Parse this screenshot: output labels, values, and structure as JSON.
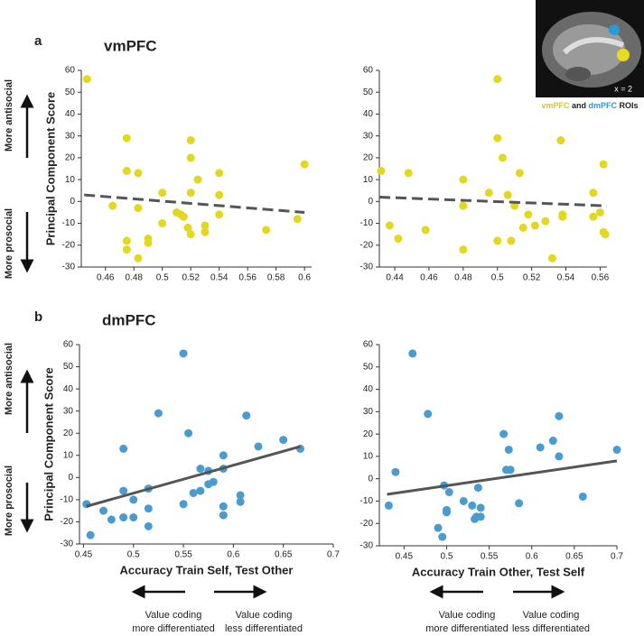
{
  "chart_data": [
    {
      "type": "scatter",
      "title": "vmPFC",
      "ylabel": "Principal Component Score",
      "color": "#e3d81f",
      "trend_style": "dashed",
      "xlim": [
        0.443,
        0.605
      ],
      "ylim": [
        -30,
        60
      ],
      "xticks": [
        0.46,
        0.48,
        0.5,
        0.52,
        0.54,
        0.56,
        0.58,
        0.6
      ],
      "yticks": [
        -30,
        -20,
        -10,
        0,
        10,
        20,
        30,
        40,
        50,
        60
      ],
      "x": [
        0.447,
        0.465,
        0.475,
        0.475,
        0.475,
        0.475,
        0.483,
        0.483,
        0.483,
        0.49,
        0.49,
        0.5,
        0.5,
        0.51,
        0.513,
        0.515,
        0.518,
        0.52,
        0.52,
        0.52,
        0.52,
        0.525,
        0.53,
        0.53,
        0.54,
        0.54,
        0.54,
        0.573,
        0.595,
        0.6
      ],
      "y": [
        56,
        -2,
        29,
        14,
        -18,
        -22,
        13,
        -3,
        -26,
        -17,
        -19,
        4,
        -10,
        -5,
        -6,
        -7,
        -12,
        28,
        20,
        4,
        -15,
        10,
        -11,
        -14,
        13,
        3,
        -6,
        -13,
        -8,
        17
      ],
      "trend": {
        "x": [
          0.445,
          0.6
        ],
        "y": [
          3,
          -5
        ]
      }
    },
    {
      "type": "scatter",
      "color": "#e3d81f",
      "trend_style": "dashed",
      "xlim": [
        0.431,
        0.564
      ],
      "ylim": [
        -30,
        60
      ],
      "xticks": [
        0.44,
        0.46,
        0.48,
        0.5,
        0.52,
        0.54,
        0.56
      ],
      "yticks": [
        -30,
        -20,
        -10,
        0,
        10,
        20,
        30,
        40,
        50,
        60
      ],
      "x": [
        0.432,
        0.437,
        0.442,
        0.448,
        0.458,
        0.48,
        0.48,
        0.48,
        0.495,
        0.5,
        0.5,
        0.5,
        0.503,
        0.506,
        0.508,
        0.51,
        0.513,
        0.515,
        0.518,
        0.522,
        0.528,
        0.532,
        0.537,
        0.538,
        0.538,
        0.556,
        0.556,
        0.56,
        0.562,
        0.562,
        0.563
      ],
      "y": [
        14,
        -11,
        -17,
        13,
        -13,
        10,
        -2,
        -22,
        4,
        56,
        29,
        -18,
        20,
        3,
        -18,
        -2,
        13,
        -12,
        -6,
        -11,
        -9,
        -26,
        28,
        -6,
        -7,
        4,
        -7,
        -5,
        17,
        -14,
        -15
      ],
      "trend": {
        "x": [
          0.431,
          0.564
        ],
        "y": [
          2,
          -2
        ]
      }
    },
    {
      "type": "scatter",
      "title": "dmPFC",
      "ylabel": "Principal Component Score",
      "xlabel": "Accuracy Train Self, Test Other",
      "color": "#4a9bd0",
      "trend_style": "solid",
      "xlim": [
        0.446,
        0.7
      ],
      "ylim": [
        -30,
        60
      ],
      "xticks": [
        0.45,
        0.5,
        0.55,
        0.6,
        0.65,
        0.7
      ],
      "yticks": [
        -30,
        -20,
        -10,
        0,
        10,
        20,
        30,
        40,
        50,
        60
      ],
      "x": [
        0.453,
        0.457,
        0.47,
        0.478,
        0.49,
        0.49,
        0.49,
        0.5,
        0.5,
        0.515,
        0.515,
        0.515,
        0.525,
        0.55,
        0.555,
        0.55,
        0.56,
        0.567,
        0.567,
        0.575,
        0.575,
        0.58,
        0.59,
        0.59,
        0.59,
        0.59,
        0.607,
        0.607,
        0.613,
        0.625,
        0.65,
        0.667
      ],
      "y": [
        -12,
        -26,
        -15,
        -19,
        13,
        -6,
        -18,
        -10,
        -18,
        -5,
        -14,
        -22,
        29,
        56,
        20,
        -12,
        -7,
        4,
        -6,
        3,
        -3,
        -2,
        10,
        4,
        -13,
        -17,
        -8,
        -11,
        28,
        14,
        17,
        13
      ],
      "trend": {
        "x": [
          0.453,
          0.667
        ],
        "y": [
          -13,
          14
        ]
      }
    },
    {
      "type": "scatter",
      "xlabel": "Accuracy Train Other, Test Self",
      "color": "#4a9bd0",
      "trend_style": "solid",
      "xlim": [
        0.421,
        0.7
      ],
      "ylim": [
        -30,
        60
      ],
      "xticks": [
        0.45,
        0.5,
        0.55,
        0.6,
        0.65,
        0.7
      ],
      "yticks": [
        -30,
        -20,
        -10,
        0,
        10,
        20,
        30,
        40,
        50,
        60
      ],
      "x": [
        0.432,
        0.44,
        0.46,
        0.478,
        0.49,
        0.495,
        0.497,
        0.5,
        0.5,
        0.503,
        0.52,
        0.53,
        0.533,
        0.535,
        0.537,
        0.54,
        0.54,
        0.567,
        0.57,
        0.573,
        0.575,
        0.585,
        0.61,
        0.625,
        0.632,
        0.632,
        0.66,
        0.7
      ],
      "y": [
        -12,
        3,
        56,
        29,
        -22,
        -26,
        -3,
        -15,
        -14,
        -6,
        -10,
        -12,
        -18,
        -17,
        -4,
        -13,
        -17,
        20,
        4,
        13,
        4,
        -11,
        14,
        17,
        28,
        10,
        -8,
        13
      ],
      "trend": {
        "x": [
          0.43,
          0.7
        ],
        "y": [
          -7,
          8
        ]
      }
    }
  ],
  "panel_labels": [
    "a",
    "b"
  ],
  "side_labels": {
    "top": [
      "More antisocial",
      "More prosocial"
    ],
    "bottom": [
      "More antisocial",
      "More prosocial"
    ]
  },
  "direction_labels": {
    "left": [
      [
        "Value coding",
        "more differentiated"
      ],
      [
        "Value coding",
        "less differentiated"
      ]
    ],
    "right": [
      [
        "Value coding",
        "more differentiated"
      ],
      [
        "Value coding",
        "less differentiated"
      ]
    ]
  },
  "inset": {
    "slice": "x = 2",
    "roi_a": "vmPFC",
    "and": "and",
    "roi_b": "dmPFC",
    "rois": "ROIs"
  }
}
